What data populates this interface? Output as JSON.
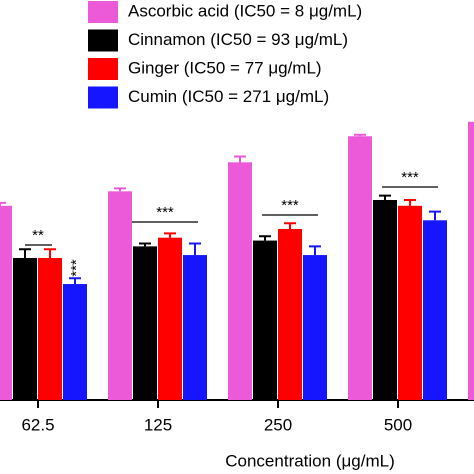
{
  "chart_data": {
    "type": "bar",
    "x_label": "Concentration (μg/mL)",
    "categories": [
      "62.5",
      "125",
      "250",
      "500",
      null
    ],
    "series": [
      {
        "name": "Ascorbic acid (IC50 = 8 μg/mL)",
        "color": "#ec5ad8",
        "values": [
          67,
          72,
          82,
          91,
          96
        ],
        "errors": [
          1,
          1,
          2,
          0.5,
          0.5
        ]
      },
      {
        "name": "Cinnamon (IC50 = 93 μg/mL)",
        "color": "#000000",
        "values": [
          49,
          53,
          55,
          69,
          0
        ],
        "errors": [
          3,
          1,
          1.5,
          1.5,
          0
        ]
      },
      {
        "name": "Ginger (IC50 = 77 μg/mL)",
        "color": "#ff0000",
        "values": [
          49,
          56,
          59,
          67,
          0
        ],
        "errors": [
          3,
          1.5,
          2,
          2,
          0
        ]
      },
      {
        "name": "Cumin (IC50 = 271 μg/mL)",
        "color": "#1515ff",
        "values": [
          40,
          50,
          50,
          62,
          0
        ],
        "errors": [
          2,
          4,
          3,
          3,
          0
        ]
      }
    ],
    "annotations": [
      "**",
      "***",
      "***",
      "***",
      "***"
    ],
    "ylim": [
      0,
      138
    ]
  }
}
